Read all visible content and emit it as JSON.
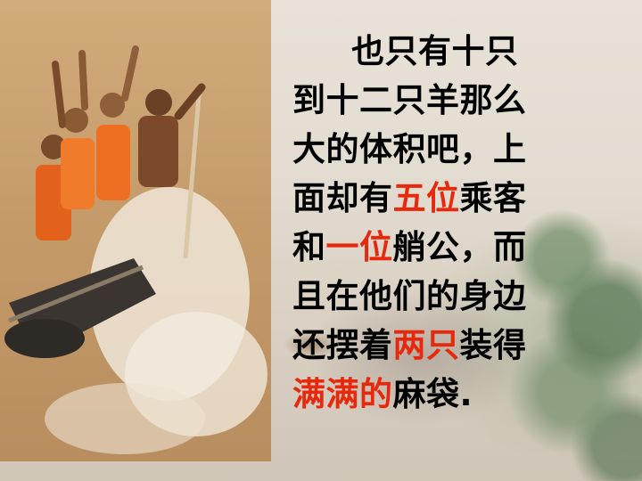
{
  "colors": {
    "text": "#000000",
    "highlight": "#e8280c"
  },
  "photo": {
    "icon": "raft-photo"
  },
  "lines": [
    [
      {
        "t": "也只有十只",
        "hl": false
      }
    ],
    [
      {
        "t": "到十二只羊那么",
        "hl": false
      }
    ],
    [
      {
        "t": "大的体积吧，上",
        "hl": false
      }
    ],
    [
      {
        "t": "面却有",
        "hl": false
      },
      {
        "t": "五位",
        "hl": true
      },
      {
        "t": "乘客",
        "hl": false
      }
    ],
    [
      {
        "t": "和",
        "hl": false
      },
      {
        "t": "一位",
        "hl": true
      },
      {
        "t": "艄公，而",
        "hl": false
      }
    ],
    [
      {
        "t": "且在他们的身边",
        "hl": false
      }
    ],
    [
      {
        "t": "还摆着",
        "hl": false
      },
      {
        "t": "两只",
        "hl": true
      },
      {
        "t": "装得",
        "hl": false
      }
    ],
    [
      {
        "t": "满满的",
        "hl": true
      },
      {
        "t": "麻袋.",
        "hl": false
      }
    ]
  ]
}
